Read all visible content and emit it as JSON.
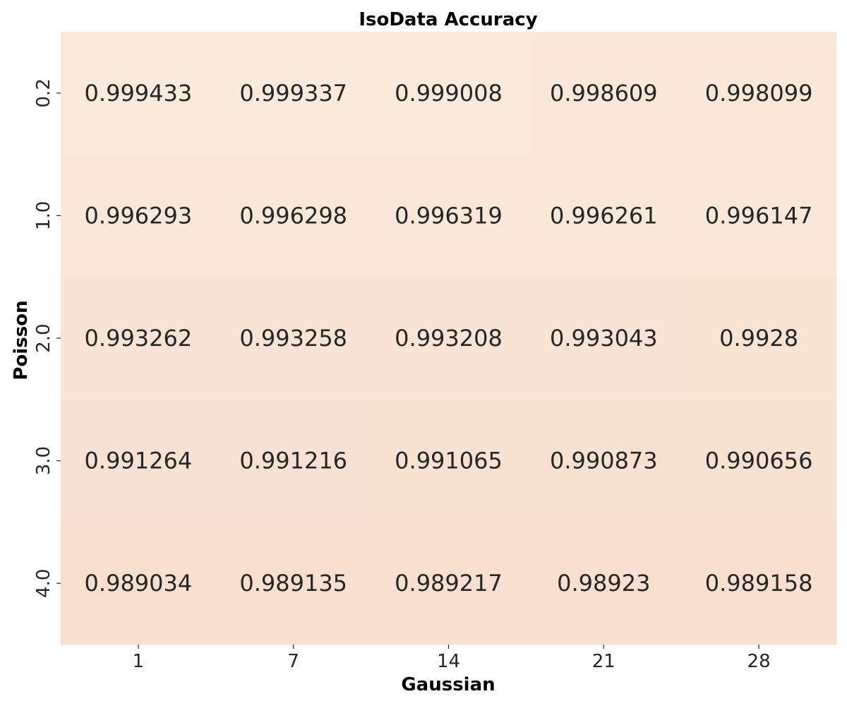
{
  "chart_data": {
    "type": "heatmap",
    "title": "IsoData Accuracy",
    "xlabel": "Gaussian",
    "ylabel": "Poisson",
    "x_categories": [
      "1",
      "7",
      "14",
      "21",
      "28"
    ],
    "y_categories": [
      "0.2",
      "1.0",
      "2.0",
      "3.0",
      "4.0"
    ],
    "values": [
      [
        0.999433,
        0.999337,
        0.999008,
        0.998609,
        0.998099
      ],
      [
        0.996293,
        0.996298,
        0.996319,
        0.996261,
        0.996147
      ],
      [
        0.993262,
        0.993258,
        0.993208,
        0.993043,
        0.9928
      ],
      [
        0.991264,
        0.991216,
        0.991065,
        0.990873,
        0.990656
      ],
      [
        0.989034,
        0.989135,
        0.989217,
        0.98923,
        0.989158
      ]
    ],
    "value_labels": [
      [
        "0.999433",
        "0.999337",
        "0.999008",
        "0.998609",
        "0.998099"
      ],
      [
        "0.996293",
        "0.996298",
        "0.996319",
        "0.996261",
        "0.996147"
      ],
      [
        "0.993262",
        "0.993258",
        "0.993208",
        "0.993043",
        "0.9928"
      ],
      [
        "0.991264",
        "0.991216",
        "0.991065",
        "0.990873",
        "0.990656"
      ],
      [
        "0.989034",
        "0.989135",
        "0.989217",
        "0.98923",
        "0.989158"
      ]
    ],
    "colors": {
      "high": "#faeadb",
      "low": "#f8dfcf",
      "annotation_text": "#262626"
    },
    "colorbar": false,
    "grid": false
  }
}
